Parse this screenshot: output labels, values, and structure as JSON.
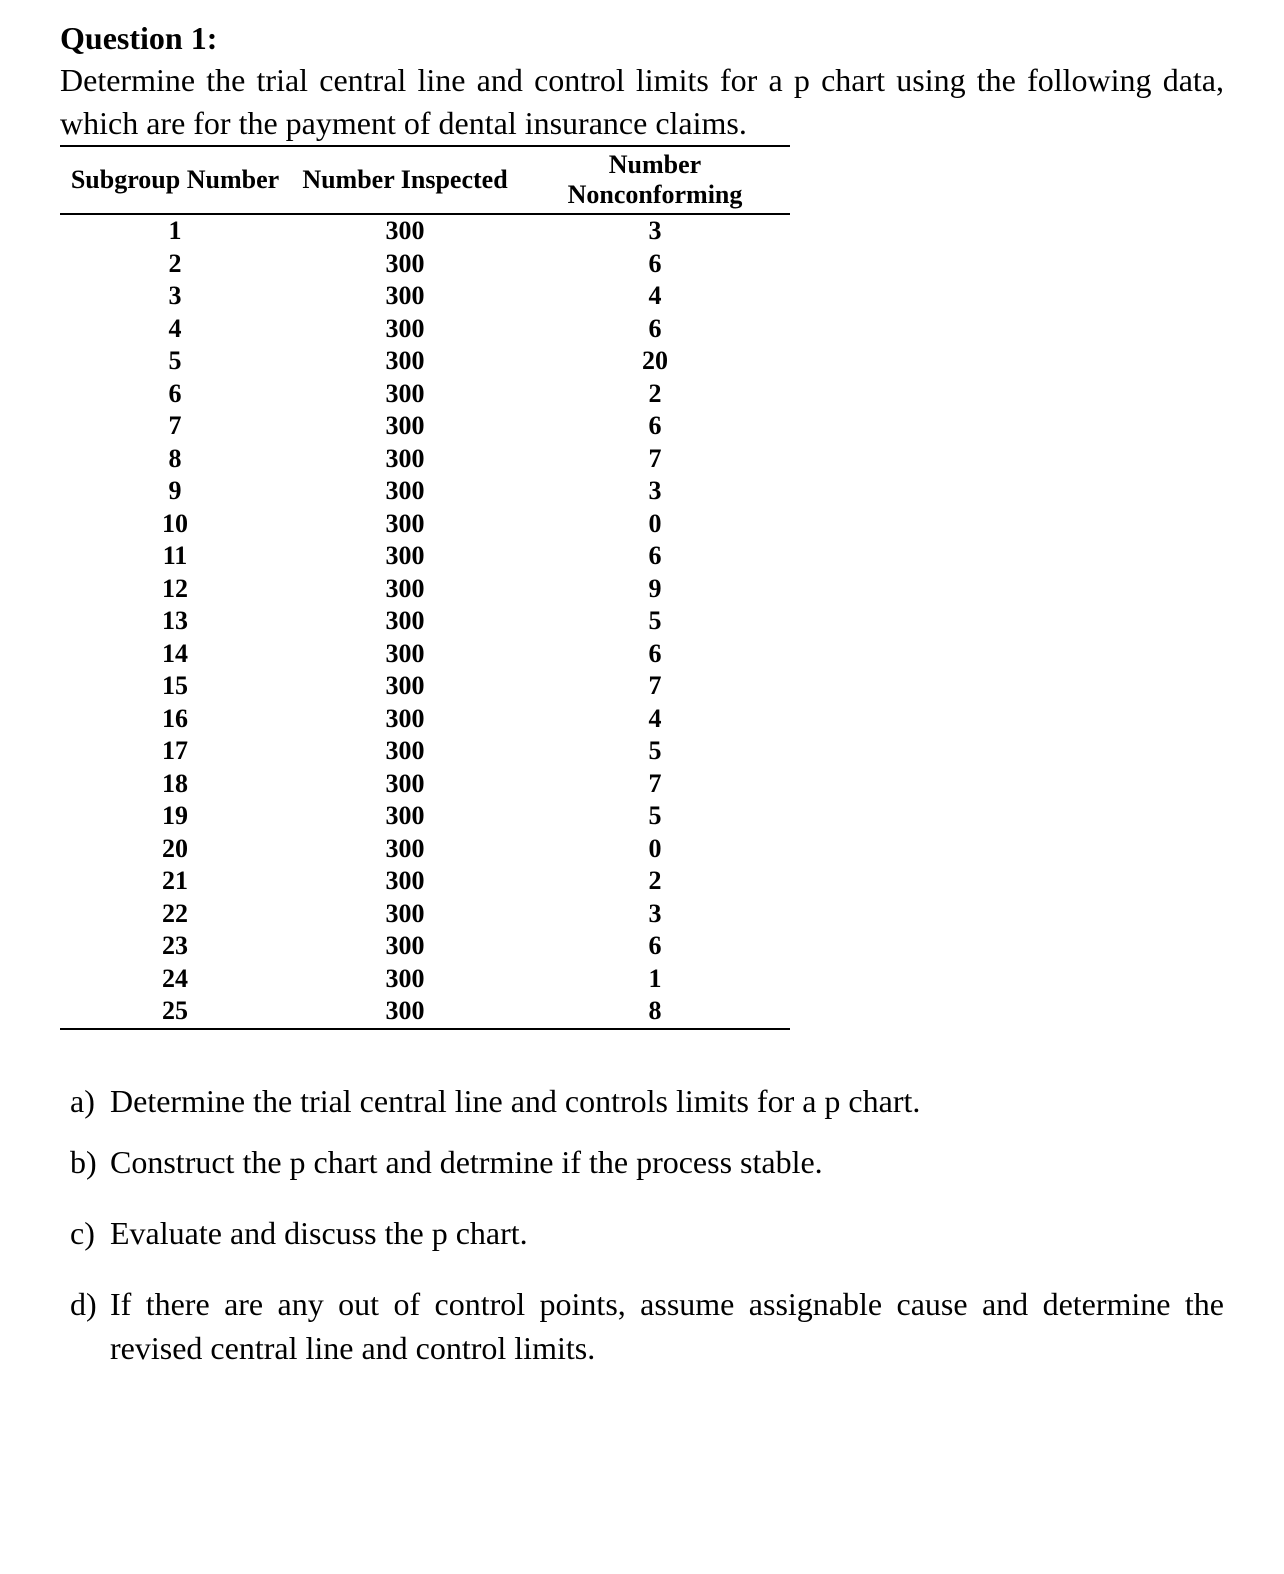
{
  "title": "Question 1:",
  "intro": "Determine the trial central line and control limits for a p chart using the following data, which are for the payment of dental insurance claims.",
  "table": {
    "columns": [
      "Subgroup Number",
      "Number Inspected",
      "Number Nonconforming"
    ],
    "rows": [
      [
        "1",
        "300",
        "3"
      ],
      [
        "2",
        "300",
        "6"
      ],
      [
        "3",
        "300",
        "4"
      ],
      [
        "4",
        "300",
        "6"
      ],
      [
        "5",
        "300",
        "20"
      ],
      [
        "6",
        "300",
        "2"
      ],
      [
        "7",
        "300",
        "6"
      ],
      [
        "8",
        "300",
        "7"
      ],
      [
        "9",
        "300",
        "3"
      ],
      [
        "10",
        "300",
        "0"
      ],
      [
        "11",
        "300",
        "6"
      ],
      [
        "12",
        "300",
        "9"
      ],
      [
        "13",
        "300",
        "5"
      ],
      [
        "14",
        "300",
        "6"
      ],
      [
        "15",
        "300",
        "7"
      ],
      [
        "16",
        "300",
        "4"
      ],
      [
        "17",
        "300",
        "5"
      ],
      [
        "18",
        "300",
        "7"
      ],
      [
        "19",
        "300",
        "5"
      ],
      [
        "20",
        "300",
        "0"
      ],
      [
        "21",
        "300",
        "2"
      ],
      [
        "22",
        "300",
        "3"
      ],
      [
        "23",
        "300",
        "6"
      ],
      [
        "24",
        "300",
        "1"
      ],
      [
        "25",
        "300",
        "8"
      ]
    ]
  },
  "subquestions": {
    "a": {
      "letter": "a)",
      "text": "Determine the trial central line and controls limits for a p chart."
    },
    "b": {
      "letter": "b)",
      "text": "Construct the p chart and detrmine if the process stable."
    },
    "c": {
      "letter": "c)",
      "text": "Evaluate and discuss the p chart."
    },
    "d": {
      "letter": "d)",
      "text": "If there are any out of control points, assume assignable cause and determine the revised central line and control limits."
    }
  }
}
